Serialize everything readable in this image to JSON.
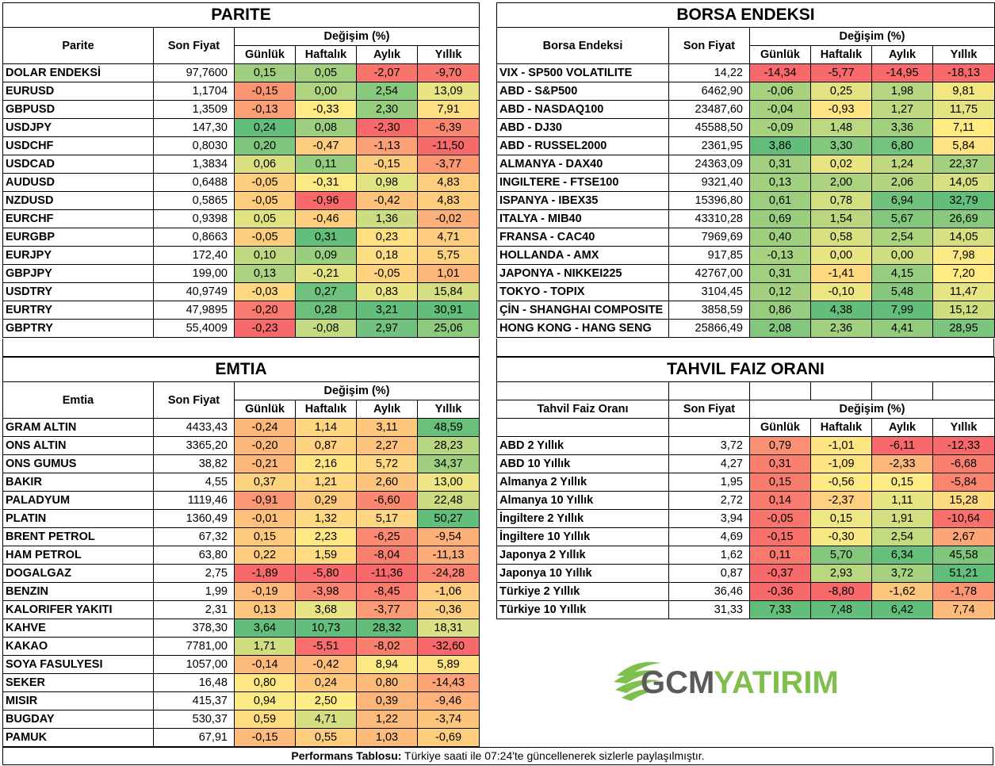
{
  "parite": {
    "title": "PARITE",
    "headers": {
      "name": "Parite",
      "price": "Son Fiyat",
      "change": "Değişim (%)",
      "daily": "Günlük",
      "weekly": "Haftalık",
      "monthly": "Aylık",
      "yearly": "Yıllık"
    },
    "rows": [
      {
        "name": "DOLAR ENDEKSİ",
        "price": "97,7600",
        "d": "0,15",
        "w": "0,05",
        "m": "-2,07",
        "y": "-9,70"
      },
      {
        "name": "EURUSD",
        "price": "1,1704",
        "d": "-0,15",
        "w": "0,00",
        "m": "2,54",
        "y": "13,09"
      },
      {
        "name": "GBPUSD",
        "price": "1,3509",
        "d": "-0,13",
        "w": "-0,33",
        "m": "2,30",
        "y": "7,91"
      },
      {
        "name": "USDJPY",
        "price": "147,30",
        "d": "0,24",
        "w": "0,08",
        "m": "-2,30",
        "y": "-6,39"
      },
      {
        "name": "USDCHF",
        "price": "0,8030",
        "d": "0,20",
        "w": "-0,47",
        "m": "-1,13",
        "y": "-11,50"
      },
      {
        "name": "USDCAD",
        "price": "1,3834",
        "d": "0,06",
        "w": "0,11",
        "m": "-0,15",
        "y": "-3,77"
      },
      {
        "name": "AUDUSD",
        "price": "0,6488",
        "d": "-0,05",
        "w": "-0,31",
        "m": "0,98",
        "y": "4,83"
      },
      {
        "name": "NZDUSD",
        "price": "0,5865",
        "d": "-0,05",
        "w": "-0,96",
        "m": "-0,42",
        "y": "4,83"
      },
      {
        "name": "EURCHF",
        "price": "0,9398",
        "d": "0,05",
        "w": "-0,46",
        "m": "1,36",
        "y": "-0,02"
      },
      {
        "name": "EURGBP",
        "price": "0,8663",
        "d": "-0,05",
        "w": "0,31",
        "m": "0,23",
        "y": "4,71"
      },
      {
        "name": "EURJPY",
        "price": "172,40",
        "d": "0,10",
        "w": "0,09",
        "m": "0,18",
        "y": "5,75"
      },
      {
        "name": "GBPJPY",
        "price": "199,00",
        "d": "0,13",
        "w": "-0,21",
        "m": "-0,05",
        "y": "1,01"
      },
      {
        "name": "USDTRY",
        "price": "40,9749",
        "d": "-0,03",
        "w": "0,27",
        "m": "0,83",
        "y": "15,84"
      },
      {
        "name": "EURTRY",
        "price": "47,9895",
        "d": "-0,20",
        "w": "0,28",
        "m": "3,21",
        "y": "30,91"
      },
      {
        "name": "GBPTRY",
        "price": "55,4009",
        "d": "-0,23",
        "w": "-0,08",
        "m": "2,97",
        "y": "25,06"
      }
    ]
  },
  "borsa": {
    "title": "BORSA ENDEKSI",
    "headers": {
      "name": "Borsa Endeksi",
      "price": "Son Fiyat",
      "change": "Değişim (%)",
      "daily": "Günlük",
      "weekly": "Haftalık",
      "monthly": "Aylık",
      "yearly": "Yıllık"
    },
    "rows": [
      {
        "name": "VIX  - SP500 VOLATILITE",
        "price": "14,22",
        "d": "-14,34",
        "w": "-5,77",
        "m": "-14,95",
        "y": "-18,13"
      },
      {
        "name": "ABD - S&P500",
        "price": "6462,90",
        "d": "-0,06",
        "w": "0,25",
        "m": "1,98",
        "y": "9,81"
      },
      {
        "name": "ABD - NASDAQ100",
        "price": "23487,60",
        "d": "-0,04",
        "w": "-0,93",
        "m": "1,27",
        "y": "11,75"
      },
      {
        "name": "ABD - DJ30",
        "price": "45588,50",
        "d": "-0,09",
        "w": "1,48",
        "m": "3,36",
        "y": "7,11"
      },
      {
        "name": "ABD - RUSSEL2000",
        "price": "2361,95",
        "d": "3,86",
        "w": "3,30",
        "m": "6,80",
        "y": "5,84"
      },
      {
        "name": "ALMANYA - DAX40",
        "price": "24363,09",
        "d": "0,31",
        "w": "0,02",
        "m": "1,24",
        "y": "22,37"
      },
      {
        "name": "INGILTERE - FTSE100",
        "price": "9321,40",
        "d": "0,13",
        "w": "2,00",
        "m": "2,06",
        "y": "14,05"
      },
      {
        "name": "ISPANYA - IBEX35",
        "price": "15396,80",
        "d": "0,61",
        "w": "0,78",
        "m": "6,94",
        "y": "32,79"
      },
      {
        "name": "ITALYA - MIB40",
        "price": "43310,28",
        "d": "0,69",
        "w": "1,54",
        "m": "5,67",
        "y": "26,69"
      },
      {
        "name": "FRANSA - CAC40",
        "price": "7969,69",
        "d": "0,40",
        "w": "0,58",
        "m": "2,54",
        "y": "14,05"
      },
      {
        "name": "HOLLANDA - AMX",
        "price": "917,85",
        "d": "-0,13",
        "w": "0,00",
        "m": "0,00",
        "y": "7,98"
      },
      {
        "name": "JAPONYA - NIKKEI225",
        "price": "42767,00",
        "d": "0,31",
        "w": "-1,41",
        "m": "4,15",
        "y": "7,20"
      },
      {
        "name": "TOKYO - TOPIX",
        "price": "3104,45",
        "d": "0,12",
        "w": "-0,10",
        "m": "5,48",
        "y": "11,47"
      },
      {
        "name": "ÇİN - SHANGHAI COMPOSITE",
        "price": "3858,59",
        "d": "0,86",
        "w": "4,38",
        "m": "7,99",
        "y": "15,12"
      },
      {
        "name": "HONG KONG - HANG SENG",
        "price": "25866,49",
        "d": "2,08",
        "w": "2,36",
        "m": "4,41",
        "y": "28,95"
      }
    ]
  },
  "emtia": {
    "title": "EMTIA",
    "headers": {
      "name": "Emtia",
      "price": "Son Fiyat",
      "change": "Değişim (%)",
      "daily": "Günlük",
      "weekly": "Haftalık",
      "monthly": "Aylık",
      "yearly": "Yıllık"
    },
    "rows": [
      {
        "name": "GRAM ALTIN",
        "price": "4433,43",
        "d": "-0,24",
        "w": "1,14",
        "m": "3,11",
        "y": "48,59"
      },
      {
        "name": "ONS ALTIN",
        "price": "3365,20",
        "d": "-0,20",
        "w": "0,87",
        "m": "2,27",
        "y": "28,23"
      },
      {
        "name": "ONS GUMUS",
        "price": "38,82",
        "d": "-0,21",
        "w": "2,16",
        "m": "5,72",
        "y": "34,37"
      },
      {
        "name": "BAKIR",
        "price": "4,55",
        "d": "0,37",
        "w": "1,21",
        "m": "2,60",
        "y": "13,00"
      },
      {
        "name": "PALADYUM",
        "price": "1119,46",
        "d": "-0,91",
        "w": "0,29",
        "m": "-6,60",
        "y": "22,48"
      },
      {
        "name": "PLATIN",
        "price": "1360,49",
        "d": "-0,01",
        "w": "1,32",
        "m": "5,17",
        "y": "50,27"
      },
      {
        "name": "BRENT PETROL",
        "price": "67,32",
        "d": "0,15",
        "w": "2,23",
        "m": "-6,25",
        "y": "-9,54"
      },
      {
        "name": "HAM PETROL",
        "price": "63,80",
        "d": "0,22",
        "w": "1,59",
        "m": "-8,04",
        "y": "-11,13"
      },
      {
        "name": "DOGALGAZ",
        "price": "2,75",
        "d": "-1,89",
        "w": "-5,80",
        "m": "-11,36",
        "y": "-24,28"
      },
      {
        "name": "BENZIN",
        "price": "1,99",
        "d": "-0,19",
        "w": "-3,98",
        "m": "-8,45",
        "y": "-1,06"
      },
      {
        "name": "KALORIFER YAKITI",
        "price": "2,31",
        "d": "0,13",
        "w": "3,68",
        "m": "-3,77",
        "y": "-0,36"
      },
      {
        "name": "KAHVE",
        "price": "378,30",
        "d": "3,64",
        "w": "10,73",
        "m": "28,32",
        "y": "18,31"
      },
      {
        "name": "KAKAO",
        "price": "7781,00",
        "d": "1,71",
        "w": "-5,51",
        "m": "-8,02",
        "y": "-32,60"
      },
      {
        "name": "SOYA FASULYESI",
        "price": "1057,00",
        "d": "-0,14",
        "w": "-0,42",
        "m": "8,94",
        "y": "5,89"
      },
      {
        "name": "SEKER",
        "price": "16,48",
        "d": "0,80",
        "w": "0,24",
        "m": "0,80",
        "y": "-14,43"
      },
      {
        "name": "MISIR",
        "price": "415,37",
        "d": "0,94",
        "w": "2,50",
        "m": "0,39",
        "y": "-9,46"
      },
      {
        "name": "BUGDAY",
        "price": "530,37",
        "d": "0,59",
        "w": "4,71",
        "m": "1,22",
        "y": "-3,74"
      },
      {
        "name": "PAMUK",
        "price": "67,91",
        "d": "-0,15",
        "w": "0,55",
        "m": "1,03",
        "y": "-0,69"
      }
    ]
  },
  "tahvil": {
    "title": "TAHVIL FAIZ ORANI",
    "headers": {
      "name": "Tahvil Faiz Oranı",
      "price": "Son Fiyat",
      "change": "Değişim (%)",
      "daily": "Günlük",
      "weekly": "Haftalık",
      "monthly": "Aylık",
      "yearly": "Yıllık"
    },
    "rows": [
      {
        "name": "ABD 2 Yıllık",
        "price": "3,72",
        "d": "0,79",
        "w": "-1,01",
        "m": "-6,11",
        "y": "-12,33"
      },
      {
        "name": "ABD 10 Yıllık",
        "price": "4,27",
        "d": "0,31",
        "w": "-1,09",
        "m": "-2,33",
        "y": "-6,68"
      },
      {
        "name": "Almanya 2 Yıllık",
        "price": "1,95",
        "d": "0,15",
        "w": "-0,56",
        "m": "0,15",
        "y": "-5,84"
      },
      {
        "name": "Almanya 10 Yıllık",
        "price": "2,72",
        "d": "0,14",
        "w": "-2,37",
        "m": "1,11",
        "y": "15,28"
      },
      {
        "name": "İngiltere 2 Yıllık",
        "price": "3,94",
        "d": "-0,05",
        "w": "0,15",
        "m": "1,91",
        "y": "-10,64"
      },
      {
        "name": "İngiltere 10 Yıllık",
        "price": "4,69",
        "d": "-0,15",
        "w": "-0,30",
        "m": "2,54",
        "y": "2,67"
      },
      {
        "name": "Japonya 2 Yıllık",
        "price": "1,62",
        "d": "0,11",
        "w": "5,70",
        "m": "6,34",
        "y": "45,58"
      },
      {
        "name": "Japonya 10 Yıllık",
        "price": "0,87",
        "d": "-0,37",
        "w": "2,93",
        "m": "3,72",
        "y": "51,21"
      },
      {
        "name": "Türkiye 2 Yıllık",
        "price": "36,46",
        "d": "-0,36",
        "w": "-8,80",
        "m": "-1,62",
        "y": "-1,78"
      },
      {
        "name": "Türkiye 10 Yıllık",
        "price": "31,33",
        "d": "7,33",
        "w": "7,48",
        "m": "6,42",
        "y": "7,74"
      }
    ]
  },
  "logo": {
    "gcm": "GCM",
    "yatirim": "YATIRIM"
  },
  "footer": {
    "bold": "Performans Tablosu:",
    "text": " Türkiye saati ile 07:24'te güncellenerek sizlerle paylaşılmıştır."
  },
  "colors": {
    "red": "#f8696b",
    "yellow": "#ffeb84",
    "green": "#63be7b",
    "text": "#000000"
  }
}
